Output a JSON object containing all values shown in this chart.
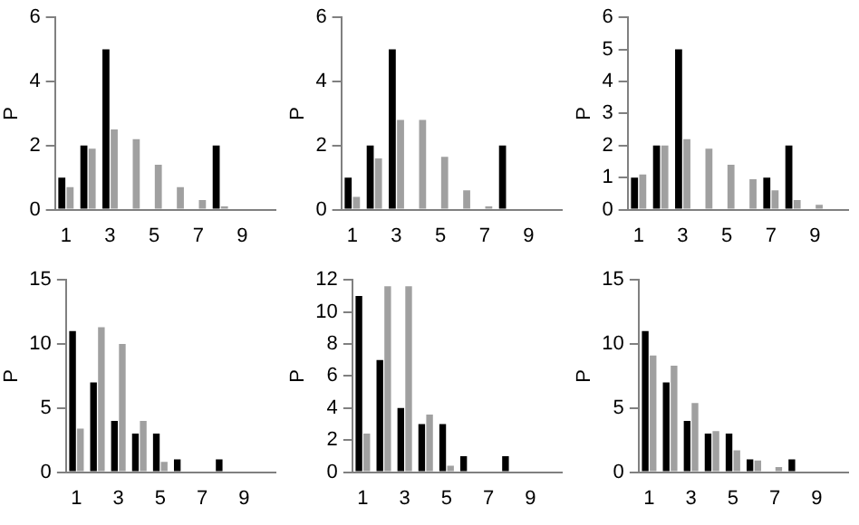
{
  "chart_data": [
    {
      "type": "bar",
      "ylabel": "P",
      "categories": [
        "1",
        null,
        "3",
        null,
        "5",
        null,
        "7",
        null,
        "9",
        null
      ],
      "ylim": [
        0,
        6
      ],
      "yticks": [
        0,
        2,
        4,
        6
      ],
      "grid": false,
      "series": [
        {
          "color": "#000000",
          "values": [
            1,
            2,
            5,
            0,
            0,
            0,
            0,
            2,
            0,
            0
          ]
        },
        {
          "color": "#a0a0a0",
          "values": [
            0.7,
            1.9,
            2.5,
            2.2,
            1.4,
            0.7,
            0.3,
            0.1,
            0,
            0
          ]
        }
      ]
    },
    {
      "type": "bar",
      "ylabel": "P",
      "categories": [
        "1",
        null,
        "3",
        null,
        "5",
        null,
        "7",
        null,
        "9",
        null
      ],
      "ylim": [
        0,
        6
      ],
      "yticks": [
        0,
        2,
        4,
        6
      ],
      "grid": false,
      "series": [
        {
          "color": "#000000",
          "values": [
            1,
            2,
            5,
            0,
            0,
            0,
            0,
            2,
            0,
            0
          ]
        },
        {
          "color": "#a0a0a0",
          "values": [
            0.4,
            1.6,
            2.8,
            2.8,
            1.65,
            0.6,
            0.1,
            0,
            0,
            0
          ]
        }
      ]
    },
    {
      "type": "bar",
      "ylabel": "P",
      "categories": [
        "1",
        null,
        "3",
        null,
        "5",
        null,
        "7",
        null,
        "9",
        null
      ],
      "ylim": [
        0,
        6
      ],
      "yticks": [
        0,
        1,
        2,
        3,
        4,
        5,
        6
      ],
      "grid": false,
      "series": [
        {
          "color": "#000000",
          "values": [
            1,
            2,
            5,
            0,
            0,
            0,
            1,
            2,
            0,
            0
          ]
        },
        {
          "color": "#a0a0a0",
          "values": [
            1.1,
            2,
            2.2,
            1.9,
            1.4,
            0.95,
            0.6,
            0.3,
            0.15,
            null
          ]
        }
      ]
    },
    {
      "type": "bar",
      "ylabel": "P",
      "categories": [
        "1",
        null,
        "3",
        null,
        "5",
        null,
        "7",
        null,
        "9",
        null
      ],
      "ylim": [
        0,
        15
      ],
      "yticks": [
        0,
        5,
        10,
        15
      ],
      "grid": false,
      "series": [
        {
          "color": "#000000",
          "values": [
            11,
            7,
            4,
            3,
            3,
            1,
            0,
            1,
            0,
            0
          ]
        },
        {
          "color": "#a0a0a0",
          "values": [
            3.4,
            11.3,
            10,
            4,
            0.8,
            0,
            0,
            0,
            0,
            0
          ]
        }
      ]
    },
    {
      "type": "bar",
      "ylabel": "P",
      "categories": [
        "1",
        null,
        "3",
        null,
        "5",
        null,
        "7",
        null,
        "9",
        null
      ],
      "ylim": [
        0,
        12
      ],
      "yticks": [
        0,
        2,
        4,
        6,
        8,
        10,
        12
      ],
      "grid": false,
      "series": [
        {
          "color": "#000000",
          "values": [
            11,
            7,
            4,
            3,
            3,
            1,
            0,
            1,
            0,
            0
          ]
        },
        {
          "color": "#a0a0a0",
          "values": [
            2.4,
            11.6,
            11.6,
            3.6,
            0.4,
            0,
            0,
            0,
            0,
            0
          ]
        }
      ]
    },
    {
      "type": "bar",
      "ylabel": "P",
      "categories": [
        "1",
        null,
        "3",
        null,
        "5",
        null,
        "7",
        null,
        "9",
        null
      ],
      "ylim": [
        0,
        15
      ],
      "yticks": [
        0,
        5,
        10,
        15
      ],
      "grid": false,
      "series": [
        {
          "color": "#000000",
          "values": [
            11,
            7,
            4,
            3,
            3,
            1,
            0,
            1,
            0,
            0
          ]
        },
        {
          "color": "#a0a0a0",
          "values": [
            9.1,
            8.3,
            5.4,
            3.2,
            1.7,
            0.9,
            0.4,
            null,
            0,
            0
          ]
        }
      ]
    }
  ]
}
